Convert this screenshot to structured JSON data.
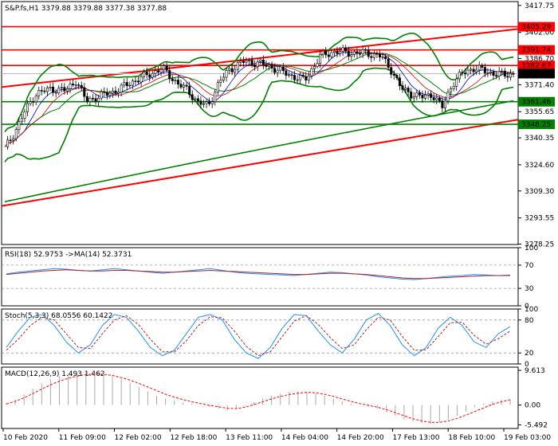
{
  "chart_data": [
    {
      "type": "candlestick",
      "header": "S&P.fs,H1  3379.88 3379.88 3377.38 3377.88",
      "y_range": [
        3278.0,
        3420.0
      ],
      "y_ticks": [
        "3417.75",
        "3402.00",
        "3386.70",
        "3371.40",
        "3355.65",
        "3340.35",
        "3324.60",
        "3309.30",
        "3293.55",
        "3278.25"
      ],
      "y_tick_values": [
        3417.75,
        3402.0,
        3386.7,
        3371.4,
        3355.65,
        3340.35,
        3324.6,
        3309.3,
        3293.55,
        3278.25
      ],
      "x_ticks": [
        "10 Feb 2020",
        "11 Feb 09:00",
        "12 Feb 02:00",
        "12 Feb 18:00",
        "13 Feb 11:00",
        "14 Feb 04:00",
        "14 Feb 20:00",
        "17 Feb 13:00",
        "18 Feb 10:00",
        "19 Feb 03:00"
      ],
      "levels": [
        {
          "label": "3405.29",
          "value": 3405.29,
          "color": "#ff0000"
        },
        {
          "label": "3391.74",
          "value": 3391.74,
          "color": "#ff0000"
        },
        {
          "label": "3382.67",
          "value": 3382.67,
          "color": "#ff0000"
        },
        {
          "label": "3361.46",
          "value": 3361.46,
          "color": "#008000"
        },
        {
          "label": "3348.25",
          "value": 3348.25,
          "color": "#008000"
        }
      ],
      "current_price": {
        "label": "3377.88",
        "value": 3377.88
      },
      "trendlines": [
        {
          "color": "#ff0000",
          "from": [
            0,
            3370.0
          ],
          "to": [
            1,
            3404.0
          ]
        },
        {
          "color": "#ff0000",
          "from": [
            0,
            3300.5
          ],
          "to": [
            1,
            3351.0
          ]
        }
      ],
      "close_path": [
        [
          0,
          3334
        ],
        [
          0.02,
          3344
        ],
        [
          0.04,
          3356
        ],
        [
          0.06,
          3366
        ],
        [
          0.09,
          3369
        ],
        [
          0.12,
          3368
        ],
        [
          0.14,
          3374
        ],
        [
          0.16,
          3362
        ],
        [
          0.19,
          3365
        ],
        [
          0.22,
          3368
        ],
        [
          0.25,
          3373
        ],
        [
          0.28,
          3377
        ],
        [
          0.31,
          3381
        ],
        [
          0.34,
          3372
        ],
        [
          0.36,
          3368
        ],
        [
          0.38,
          3361
        ],
        [
          0.4,
          3359
        ],
        [
          0.42,
          3372
        ],
        [
          0.44,
          3380
        ],
        [
          0.47,
          3385
        ],
        [
          0.5,
          3384
        ],
        [
          0.53,
          3381
        ],
        [
          0.56,
          3377
        ],
        [
          0.59,
          3374
        ],
        [
          0.62,
          3388
        ],
        [
          0.65,
          3391
        ],
        [
          0.68,
          3390
        ],
        [
          0.71,
          3390
        ],
        [
          0.74,
          3388
        ],
        [
          0.76,
          3380
        ],
        [
          0.78,
          3369
        ],
        [
          0.8,
          3366
        ],
        [
          0.82,
          3364
        ],
        [
          0.84,
          3366
        ],
        [
          0.86,
          3358
        ],
        [
          0.88,
          3372
        ],
        [
          0.9,
          3378
        ],
        [
          0.92,
          3381
        ],
        [
          0.94,
          3380
        ],
        [
          0.96,
          3378
        ],
        [
          0.98,
          3377
        ],
        [
          1.0,
          3378
        ]
      ]
    },
    {
      "type": "line",
      "header": "RSI(18) 52.9753  ->MA(14) 52.3731",
      "y_range": [
        0,
        100
      ],
      "y_ticks": [
        "100",
        "70",
        "30",
        "0"
      ],
      "y_tick_values": [
        100,
        70,
        30,
        0
      ],
      "series": [
        {
          "color": "#1e90ff",
          "values": [
            55,
            58,
            60,
            62,
            64,
            63,
            61,
            60,
            62,
            64,
            62,
            60,
            58,
            56,
            58,
            60,
            62,
            64,
            61,
            58,
            56,
            55,
            54,
            53,
            52,
            54,
            56,
            58,
            57,
            55,
            53,
            50,
            48,
            46,
            45,
            47,
            49,
            51,
            52,
            54,
            53,
            52,
            53
          ]
        },
        {
          "color": "#b22222",
          "values": [
            54,
            56,
            58,
            60,
            61,
            62,
            61,
            60,
            60,
            61,
            61,
            60,
            59,
            58,
            58,
            59,
            60,
            61,
            60,
            59,
            58,
            57,
            56,
            55,
            54,
            54,
            55,
            56,
            56,
            55,
            54,
            52,
            50,
            48,
            47,
            47,
            48,
            49,
            50,
            51,
            52,
            52,
            52
          ]
        }
      ]
    },
    {
      "type": "line",
      "header": "Stoch(5,3,3) 68.0556 60.1422",
      "y_range": [
        0,
        100
      ],
      "y_ticks": [
        "100",
        "80",
        "20",
        "0"
      ],
      "y_tick_values": [
        100,
        80,
        20,
        0
      ],
      "series": [
        {
          "color": "#1e90ff",
          "values": [
            30,
            60,
            85,
            90,
            70,
            40,
            20,
            35,
            70,
            90,
            85,
            60,
            30,
            15,
            25,
            55,
            85,
            90,
            80,
            45,
            20,
            10,
            30,
            65,
            90,
            88,
            60,
            35,
            20,
            45,
            80,
            92,
            70,
            35,
            15,
            30,
            65,
            85,
            70,
            40,
            30,
            55,
            68
          ]
        },
        {
          "color": "#b22222",
          "values": [
            25,
            45,
            70,
            85,
            80,
            55,
            30,
            28,
            55,
            80,
            88,
            72,
            45,
            22,
            22,
            42,
            70,
            86,
            84,
            60,
            32,
            15,
            22,
            50,
            78,
            88,
            72,
            48,
            28,
            35,
            62,
            85,
            80,
            50,
            25,
            26,
            50,
            75,
            76,
            52,
            36,
            46,
            60
          ]
        }
      ]
    },
    {
      "type": "bar",
      "header": "MACD(12,26,9) 1.493 1.462",
      "y_range": [
        -6.5,
        10.5
      ],
      "y_ticks": [
        "9.613",
        "0.00",
        "-5.492"
      ],
      "y_tick_values": [
        9.613,
        0.0,
        -5.492
      ],
      "histogram": [
        0.5,
        1.5,
        3.0,
        4.5,
        6.0,
        7.2,
        8.0,
        8.6,
        9.0,
        9.2,
        9.0,
        8.6,
        8.0,
        7.2,
        6.2,
        5.0,
        3.8,
        2.6,
        1.8,
        1.2,
        0.8,
        0.4,
        0.0,
        -0.5,
        -1.0,
        -1.5,
        -1.0,
        -0.2,
        0.8,
        1.8,
        2.6,
        3.2,
        3.6,
        3.8,
        3.6,
        3.2,
        2.6,
        1.8,
        1.0,
        0.4,
        0.0,
        -0.4,
        -1.0,
        -2.0,
        -3.0,
        -4.0,
        -4.6,
        -5.0,
        -5.2,
        -4.8,
        -4.0,
        -3.0,
        -1.8,
        -0.6,
        0.4,
        1.0,
        1.4,
        1.5
      ],
      "signal": [
        0.3,
        1.0,
        2.0,
        3.2,
        4.4,
        5.6,
        6.6,
        7.4,
        8.0,
        8.4,
        8.6,
        8.5,
        8.2,
        7.6,
        6.9,
        6.0,
        5.0,
        4.0,
        3.0,
        2.2,
        1.5,
        0.9,
        0.4,
        -0.1,
        -0.5,
        -0.9,
        -1.0,
        -0.6,
        0.1,
        0.9,
        1.7,
        2.4,
        2.9,
        3.3,
        3.5,
        3.4,
        3.0,
        2.4,
        1.7,
        1.0,
        0.4,
        -0.1,
        -0.6,
        -1.3,
        -2.1,
        -3.0,
        -3.8,
        -4.4,
        -4.8,
        -4.8,
        -4.4,
        -3.7,
        -2.8,
        -1.8,
        -0.8,
        0.2,
        0.9,
        1.46
      ]
    }
  ]
}
